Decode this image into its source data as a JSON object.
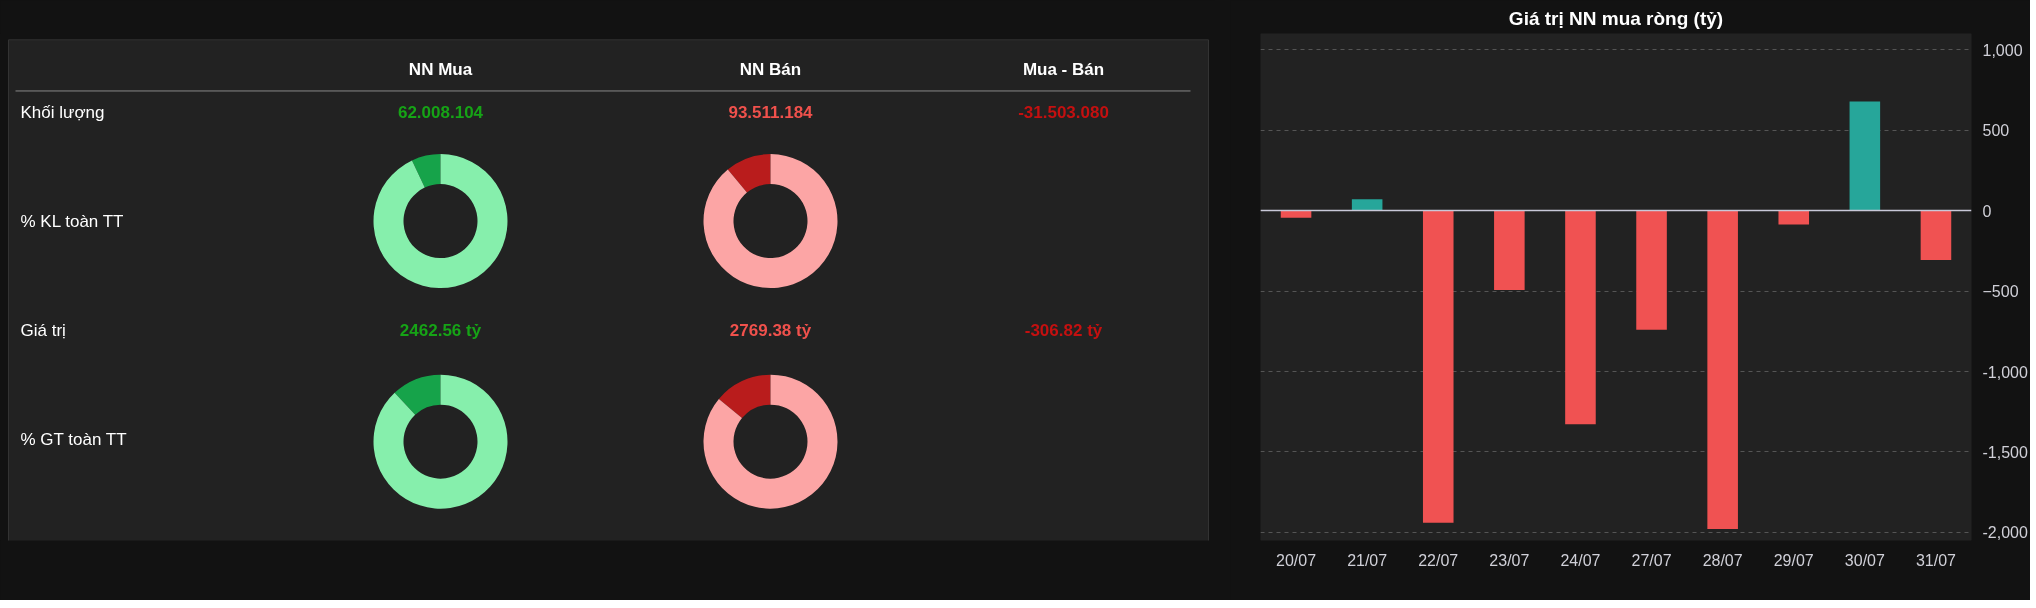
{
  "chart_data": [
    {
      "type": "other",
      "annotations": [
        "NN Mua",
        "NN Bán",
        "Mua - Bán",
        "Khối lượng",
        "% KL toàn TT",
        "Giá trị",
        "% GT toàn TT",
        "62.008.104",
        "93.511.184",
        "-31.503.080",
        "2462.56 tỷ",
        "2769.38 tỷ",
        "-306.82 tỷ"
      ],
      "colors": [
        "#16a316",
        "#f0514c",
        "#c41010",
        "#16a316",
        "#f0514c",
        "#c41010"
      ]
    },
    {
      "type": "donut",
      "categories": [
        null,
        null
      ],
      "values": [
        7,
        93
      ],
      "colors": [
        "#16a34a",
        "#86efac"
      ]
    },
    {
      "type": "donut",
      "categories": [
        null,
        null
      ],
      "values": [
        11,
        89
      ],
      "colors": [
        "#b91c1c",
        "#fca5a5"
      ]
    },
    {
      "type": "donut",
      "categories": [
        null,
        null
      ],
      "values": [
        12,
        88
      ],
      "colors": [
        "#16a34a",
        "#86efac"
      ]
    },
    {
      "type": "donut",
      "categories": [
        null,
        null
      ],
      "values": [
        14,
        86
      ],
      "colors": [
        "#b91c1c",
        "#fca5a5"
      ]
    },
    {
      "type": "bar",
      "title": "Giá trị NN mua ròng (tỷ)",
      "categories": [
        "20/07",
        "21/07",
        "22/07",
        "23/07",
        "24/07",
        "27/07",
        "28/07",
        "29/07",
        "30/07",
        "31/07"
      ],
      "values": [
        -45,
        70,
        -1940,
        -493,
        -1327,
        -741,
        -1978,
        -86,
        677,
        -307
      ],
      "colors": [
        "#f05252",
        "#26a69a",
        "#f05252",
        "#f05252",
        "#f05252",
        "#f05252",
        "#f05252",
        "#f05252",
        "#26a69a",
        "#f05252"
      ],
      "ylim": [
        -2050,
        1100
      ],
      "yticks": [
        {
          "value": 1000,
          "label": "1,000"
        },
        500,
        0,
        -500,
        {
          "value": -1000,
          "label": "-1,000"
        },
        {
          "value": -1500,
          "label": "-1,500"
        },
        {
          "value": -2000,
          "label": "-2,000"
        }
      ],
      "grid": "y",
      "ref_lines": [
        {
          "axis": "y",
          "value": 0,
          "label": null,
          "color": "#c8c8d8"
        }
      ]
    }
  ]
}
